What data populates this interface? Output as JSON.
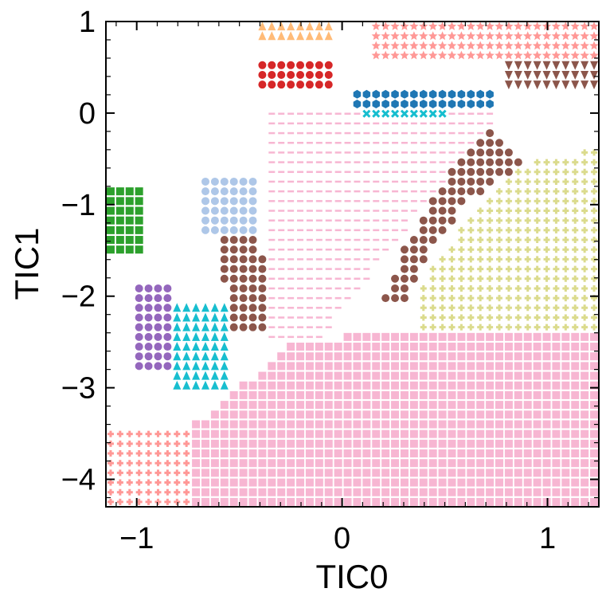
{
  "chart_data": {
    "type": "heatmap",
    "title": "",
    "xlabel": "TIC0",
    "ylabel": "TIC1",
    "xlim": [
      -1.15,
      1.25
    ],
    "ylim": [
      -4.3,
      1.0
    ],
    "x_ticks": [
      {
        "value": -1,
        "label": "−1"
      },
      {
        "value": 0,
        "label": "0"
      },
      {
        "value": 1,
        "label": "1"
      }
    ],
    "y_ticks": [
      {
        "value": 1,
        "label": "1"
      },
      {
        "value": 0,
        "label": "0"
      },
      {
        "value": -1,
        "label": "−1"
      },
      {
        "value": -2,
        "label": "−2"
      },
      {
        "value": -3,
        "label": "−3"
      },
      {
        "value": -4,
        "label": "−4"
      }
    ],
    "grid": false,
    "legend": "none",
    "description_of_encoding": "Metastable-state assignment map over the TIC0/TIC1 plane; each state drawn with its own colored marker on a regular lattice.",
    "regions": [
      {
        "state": "pink-squares",
        "color": "#f7b6d2",
        "marker": "square",
        "polygon": [
          [
            -0.72,
            -4.3
          ],
          [
            1.25,
            -4.3
          ],
          [
            1.25,
            -2.35
          ],
          [
            0.2,
            -2.35
          ],
          [
            -0.25,
            -2.55
          ],
          [
            -0.72,
            -3.4
          ]
        ]
      },
      {
        "state": "pink-dashes",
        "color": "#f7b6d2",
        "marker": "dash",
        "polygon": [
          [
            -0.35,
            0.0
          ],
          [
            0.75,
            0.0
          ],
          [
            0.75,
            -0.35
          ],
          [
            0.45,
            -0.85
          ],
          [
            0.2,
            -1.6
          ],
          [
            -0.05,
            -2.3
          ],
          [
            -0.1,
            -2.5
          ],
          [
            -0.35,
            -2.5
          ]
        ]
      },
      {
        "state": "brown-band",
        "color": "#8c564b",
        "marker": "circle",
        "polygon": [
          [
            0.72,
            -0.15
          ],
          [
            0.88,
            -0.55
          ],
          [
            0.6,
            -1.0
          ],
          [
            0.4,
            -1.6
          ],
          [
            0.32,
            -2.1
          ],
          [
            0.2,
            -2.1
          ],
          [
            0.28,
            -1.55
          ],
          [
            0.45,
            -0.9
          ],
          [
            0.62,
            -0.35
          ]
        ]
      },
      {
        "state": "olive-plus",
        "color": "#dbdb8d",
        "marker": "plus",
        "polygon": [
          [
            0.88,
            -0.55
          ],
          [
            1.25,
            -0.4
          ],
          [
            1.25,
            -2.35
          ],
          [
            0.35,
            -2.35
          ],
          [
            0.4,
            -1.8
          ],
          [
            0.6,
            -1.2
          ]
        ]
      },
      {
        "state": "blue-hexagons",
        "color": "#1f77b4",
        "marker": "hexagon",
        "polygon": [
          [
            0.05,
            0.25
          ],
          [
            0.75,
            0.25
          ],
          [
            0.75,
            0.05
          ],
          [
            0.05,
            0.05
          ]
        ]
      },
      {
        "state": "cyan-x",
        "color": "#17becf",
        "marker": "x",
        "polygon": [
          [
            0.1,
            0.05
          ],
          [
            0.5,
            0.05
          ],
          [
            0.5,
            -0.1
          ],
          [
            0.1,
            -0.1
          ]
        ]
      },
      {
        "state": "salmon-stars",
        "color": "#ff9896",
        "marker": "star",
        "polygon": [
          [
            0.15,
            0.95
          ],
          [
            1.25,
            0.95
          ],
          [
            1.25,
            0.55
          ],
          [
            0.15,
            0.55
          ]
        ]
      },
      {
        "state": "brown-triangles-down",
        "color": "#8c564b",
        "marker": "triangle_down",
        "polygon": [
          [
            0.8,
            0.55
          ],
          [
            1.25,
            0.55
          ],
          [
            1.25,
            0.3
          ],
          [
            0.8,
            0.3
          ]
        ]
      },
      {
        "state": "red-circles",
        "color": "#d62728",
        "marker": "circle",
        "polygon": [
          [
            -0.4,
            0.55
          ],
          [
            -0.05,
            0.55
          ],
          [
            -0.05,
            0.3
          ],
          [
            -0.4,
            0.3
          ]
        ]
      },
      {
        "state": "orange-triangles",
        "color": "#ffbb78",
        "marker": "triangle",
        "polygon": [
          [
            -0.4,
            0.95
          ],
          [
            -0.05,
            0.95
          ],
          [
            -0.05,
            0.75
          ],
          [
            -0.4,
            0.75
          ]
        ]
      },
      {
        "state": "green-squares",
        "color": "#2ca02c",
        "marker": "square",
        "polygon": [
          [
            -1.15,
            -0.8
          ],
          [
            -0.95,
            -0.8
          ],
          [
            -0.95,
            -1.5
          ],
          [
            -1.15,
            -1.5
          ]
        ]
      },
      {
        "state": "teal-triangles",
        "color": "#17becf",
        "marker": "triangle",
        "polygon": [
          [
            -0.85,
            -2.1
          ],
          [
            -0.55,
            -2.1
          ],
          [
            -0.55,
            -3.0
          ],
          [
            -0.85,
            -3.0
          ]
        ]
      },
      {
        "state": "brown-column",
        "color": "#8c564b",
        "marker": "circle",
        "polygon": [
          [
            -0.6,
            -1.3
          ],
          [
            -0.4,
            -1.3
          ],
          [
            -0.35,
            -2.4
          ],
          [
            -0.55,
            -2.4
          ]
        ]
      },
      {
        "state": "purple-circles",
        "color": "#9467bd",
        "marker": "circle",
        "polygon": [
          [
            -1.0,
            -1.9
          ],
          [
            -0.85,
            -1.9
          ],
          [
            -0.85,
            -2.8
          ],
          [
            -1.0,
            -2.8
          ]
        ]
      },
      {
        "state": "lightblue-circles",
        "color": "#aec7e8",
        "marker": "circle",
        "polygon": [
          [
            -0.7,
            -0.65
          ],
          [
            -0.4,
            -0.65
          ],
          [
            -0.4,
            -1.3
          ],
          [
            -0.7,
            -1.3
          ]
        ]
      },
      {
        "state": "salmon-plus",
        "color": "#ff9896",
        "marker": "plus",
        "polygon": [
          [
            -1.15,
            -3.4
          ],
          [
            -0.72,
            -3.4
          ],
          [
            -0.72,
            -4.3
          ],
          [
            -1.15,
            -4.3
          ]
        ]
      }
    ]
  }
}
